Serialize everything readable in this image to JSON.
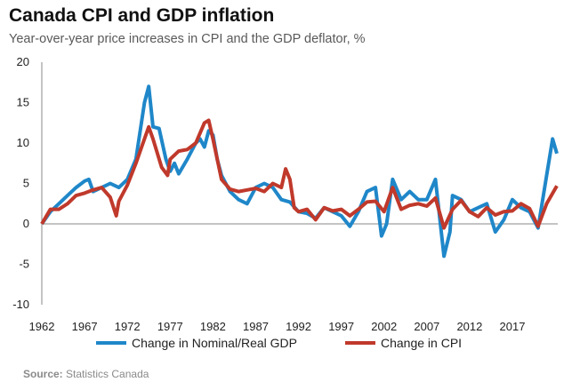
{
  "chart_data": {
    "type": "line",
    "title": "Canada CPI and GDP inflation",
    "subtitle": "Year-over-year  price increases in CPI and the GDP deflator, %",
    "xlabel": "",
    "ylabel": "",
    "ylim": [
      -10,
      20
    ],
    "xlim": [
      1962,
      2022.3
    ],
    "yticks": [
      20,
      15,
      10,
      5,
      0,
      -5,
      -10
    ],
    "xticks": [
      1962,
      1967,
      1972,
      1977,
      1982,
      1987,
      1992,
      1997,
      2002,
      2007,
      2012,
      2017
    ],
    "legend_position": "bottom",
    "grid": false,
    "series": [
      {
        "name": "Change in Nominal/Real GDP",
        "color": "#1f87c9",
        "x": [
          1962,
          1963,
          1964,
          1965,
          1966,
          1967,
          1967.5,
          1968,
          1969,
          1970,
          1971,
          1972,
          1973,
          1974,
          1974.5,
          1975,
          1975.7,
          1976.5,
          1977,
          1977.5,
          1978,
          1979,
          1980,
          1980.5,
          1981,
          1981.5,
          1982,
          1982.5,
          1983,
          1984,
          1985,
          1986,
          1987,
          1988,
          1989,
          1990,
          1991,
          1992,
          1993,
          1994,
          1995,
          1996,
          1997,
          1998,
          1999,
          2000,
          2001,
          2001.7,
          2002.3,
          2003,
          2004,
          2005,
          2006,
          2007,
          2008,
          2009,
          2009.7,
          2010,
          2011,
          2012,
          2013,
          2014,
          2015,
          2016,
          2017,
          2018,
          2019,
          2020,
          2021,
          2021.7,
          2022.2
        ],
        "values": [
          0,
          1.5,
          2.5,
          3.5,
          4.5,
          5.3,
          5.5,
          4,
          4.5,
          5,
          4.5,
          5.5,
          8,
          15,
          17,
          12,
          11.8,
          8,
          6.5,
          7.5,
          6.2,
          8,
          10,
          10.5,
          9.5,
          11.5,
          11,
          8,
          6,
          4,
          3,
          2.5,
          4.5,
          5,
          4.5,
          3,
          2.7,
          1.5,
          1.3,
          0.7,
          2,
          1.5,
          1,
          -0.3,
          1.5,
          4,
          4.5,
          -1.5,
          0,
          5.5,
          3,
          4,
          3,
          3,
          5.5,
          -4,
          -1,
          3.5,
          3,
          1.5,
          2,
          2.5,
          -1,
          0.5,
          3,
          2,
          1.5,
          -0.5,
          6,
          10.5,
          8.7
        ]
      },
      {
        "name": "Change in CPI",
        "color": "#c0392b",
        "x": [
          1962,
          1963,
          1964,
          1965,
          1966,
          1967,
          1968,
          1969,
          1970,
          1970.7,
          1971,
          1972,
          1973,
          1974,
          1974.5,
          1975,
          1976,
          1976.7,
          1977,
          1978,
          1979,
          1980,
          1981,
          1981.5,
          1982,
          1983,
          1984,
          1985,
          1986,
          1987,
          1988,
          1989,
          1990,
          1990.5,
          1991,
          1991.5,
          1992,
          1993,
          1994,
          1995,
          1996,
          1997,
          1998,
          1999,
          2000,
          2001,
          2002,
          2003,
          2004,
          2005,
          2006,
          2007,
          2008,
          2009,
          2010,
          2011,
          2012,
          2013,
          2014,
          2015,
          2016,
          2017,
          2018,
          2019,
          2020,
          2021,
          2022.2
        ],
        "values": [
          0,
          1.8,
          1.8,
          2.5,
          3.5,
          3.8,
          4.2,
          4.5,
          3.3,
          1,
          2.8,
          4.8,
          7.5,
          10.5,
          12,
          10.5,
          7,
          6,
          8,
          9,
          9.2,
          10,
          12.5,
          12.8,
          10.5,
          5.5,
          4.3,
          4,
          4.2,
          4.4,
          4,
          5,
          4.5,
          6.8,
          5.5,
          2,
          1.5,
          1.8,
          0.5,
          2,
          1.6,
          1.8,
          1,
          1.8,
          2.7,
          2.8,
          1.5,
          4.5,
          1.8,
          2.3,
          2.5,
          2.2,
          3.2,
          -0.5,
          1.8,
          2.9,
          1.5,
          0.9,
          2,
          1.1,
          1.5,
          1.6,
          2.5,
          1.9,
          -0.3,
          2.5,
          4.7
        ]
      }
    ],
    "source_label": "Source:",
    "source_text": "Statistics Canada"
  }
}
